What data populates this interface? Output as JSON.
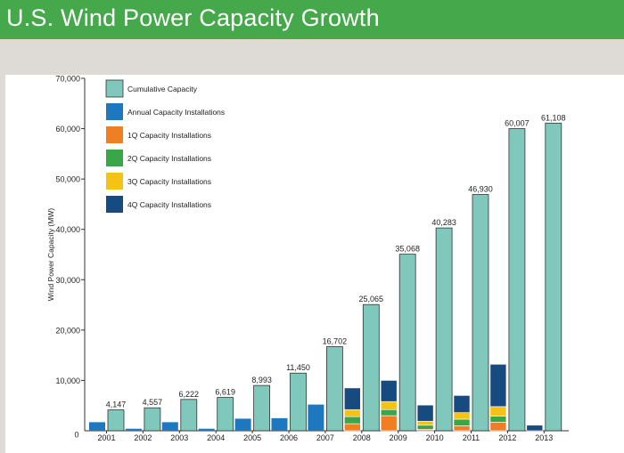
{
  "header": {
    "title": "U.S. Wind Power Capacity Growth"
  },
  "colors": {
    "header_bg": "#45a84a",
    "cumulative": "#7fc8bb",
    "annual": "#1e78c0",
    "q1": "#f07e22",
    "q2": "#3aa64a",
    "q3": "#f5c316",
    "q4": "#174a7e"
  },
  "chart_data": {
    "type": "bar",
    "title": "U.S. Wind Power Capacity Growth",
    "ylabel": "Wind Power Capacity (MW)",
    "xlabel": "",
    "ylim": [
      0,
      70000
    ],
    "yticks": [
      "0",
      "10,000",
      "20,000",
      "30,000",
      "40,000",
      "50,000",
      "60,000",
      "70,000"
    ],
    "ytick_values": [
      0,
      10000,
      20000,
      30000,
      40000,
      50000,
      60000,
      70000
    ],
    "grid": false,
    "legend_position": "top-left",
    "categories": [
      "2001",
      "2002",
      "2003",
      "2004",
      "2005",
      "2006",
      "2007",
      "2008",
      "2009",
      "2010",
      "2011",
      "2012",
      "2013"
    ],
    "cumulative": {
      "name": "Cumulative Capacity",
      "values": [
        4147,
        4557,
        6222,
        6619,
        8993,
        11450,
        16702,
        25065,
        35068,
        40283,
        46930,
        60007,
        61108
      ],
      "labels": [
        "4,147",
        "4,557",
        "6,222",
        "6,619",
        "8,993",
        "11,450",
        "16,702",
        "25,065",
        "35,068",
        "40,283",
        "46,930",
        "60,007",
        "61,108"
      ]
    },
    "annual": {
      "name": "Annual Capacity Installations",
      "values": [
        1700,
        400,
        1700,
        400,
        2400,
        2500,
        5200,
        null,
        null,
        null,
        null,
        null,
        null
      ]
    },
    "quarterly": [
      {
        "name": "1Q Capacity Installations",
        "values": [
          null,
          null,
          null,
          null,
          null,
          null,
          null,
          1400,
          3000,
          300,
          1000,
          1700,
          null
        ]
      },
      {
        "name": "2Q Capacity Installations",
        "values": [
          null,
          null,
          null,
          null,
          null,
          null,
          null,
          1400,
          1200,
          800,
          1300,
          1200,
          null
        ]
      },
      {
        "name": "3Q Capacity Installations",
        "values": [
          null,
          null,
          null,
          null,
          null,
          null,
          null,
          1400,
          1600,
          800,
          1300,
          1900,
          null
        ]
      },
      {
        "name": "4Q Capacity Installations",
        "values": [
          null,
          null,
          null,
          null,
          null,
          null,
          null,
          4300,
          4200,
          3200,
          3400,
          8400,
          1100
        ]
      }
    ]
  }
}
